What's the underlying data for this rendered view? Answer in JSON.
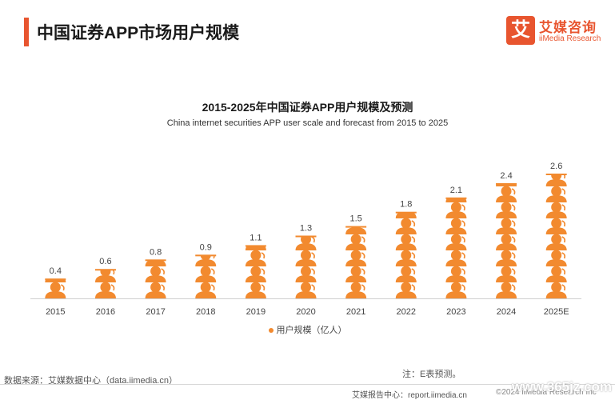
{
  "header": {
    "title": "中国证券APP市场用户规模",
    "logo_mark": "艾",
    "logo_cn": "艾媒咨询",
    "logo_en": "iiMedia Research"
  },
  "chart_data": {
    "type": "bar",
    "title": "2015-2025年中国证券APP用户规模及预测",
    "subtitle": "China internet securities APP user scale and forecast from 2015 to 2025",
    "categories": [
      "2015",
      "2016",
      "2017",
      "2018",
      "2019",
      "2020",
      "2021",
      "2022",
      "2023",
      "2024",
      "2025E"
    ],
    "series": [
      {
        "name": "用户规模（亿人）",
        "values": [
          0.4,
          0.6,
          0.8,
          0.9,
          1.1,
          1.3,
          1.5,
          1.8,
          2.1,
          2.4,
          2.6
        ]
      }
    ],
    "data_labels": [
      "0.4",
      "0.6",
      "0.8",
      "0.9",
      "1.1",
      "1.3",
      "1.5",
      "1.8",
      "2.1",
      "2.4",
      "2.6"
    ],
    "ylim": [
      0,
      2.6
    ],
    "grid": false,
    "legend_position": "bottom",
    "bar_style": "stacked person pictogram",
    "color": "#f28a2f"
  },
  "footer": {
    "source": "数据来源：艾媒数据中心（data.iimedia.cn）",
    "note": "注：E表预测。",
    "report_site": "艾媒报告中心：report.iimedia.cn",
    "copyright": "©2024  iiMedia Research  Inc",
    "watermark": "www.365jz.com"
  }
}
